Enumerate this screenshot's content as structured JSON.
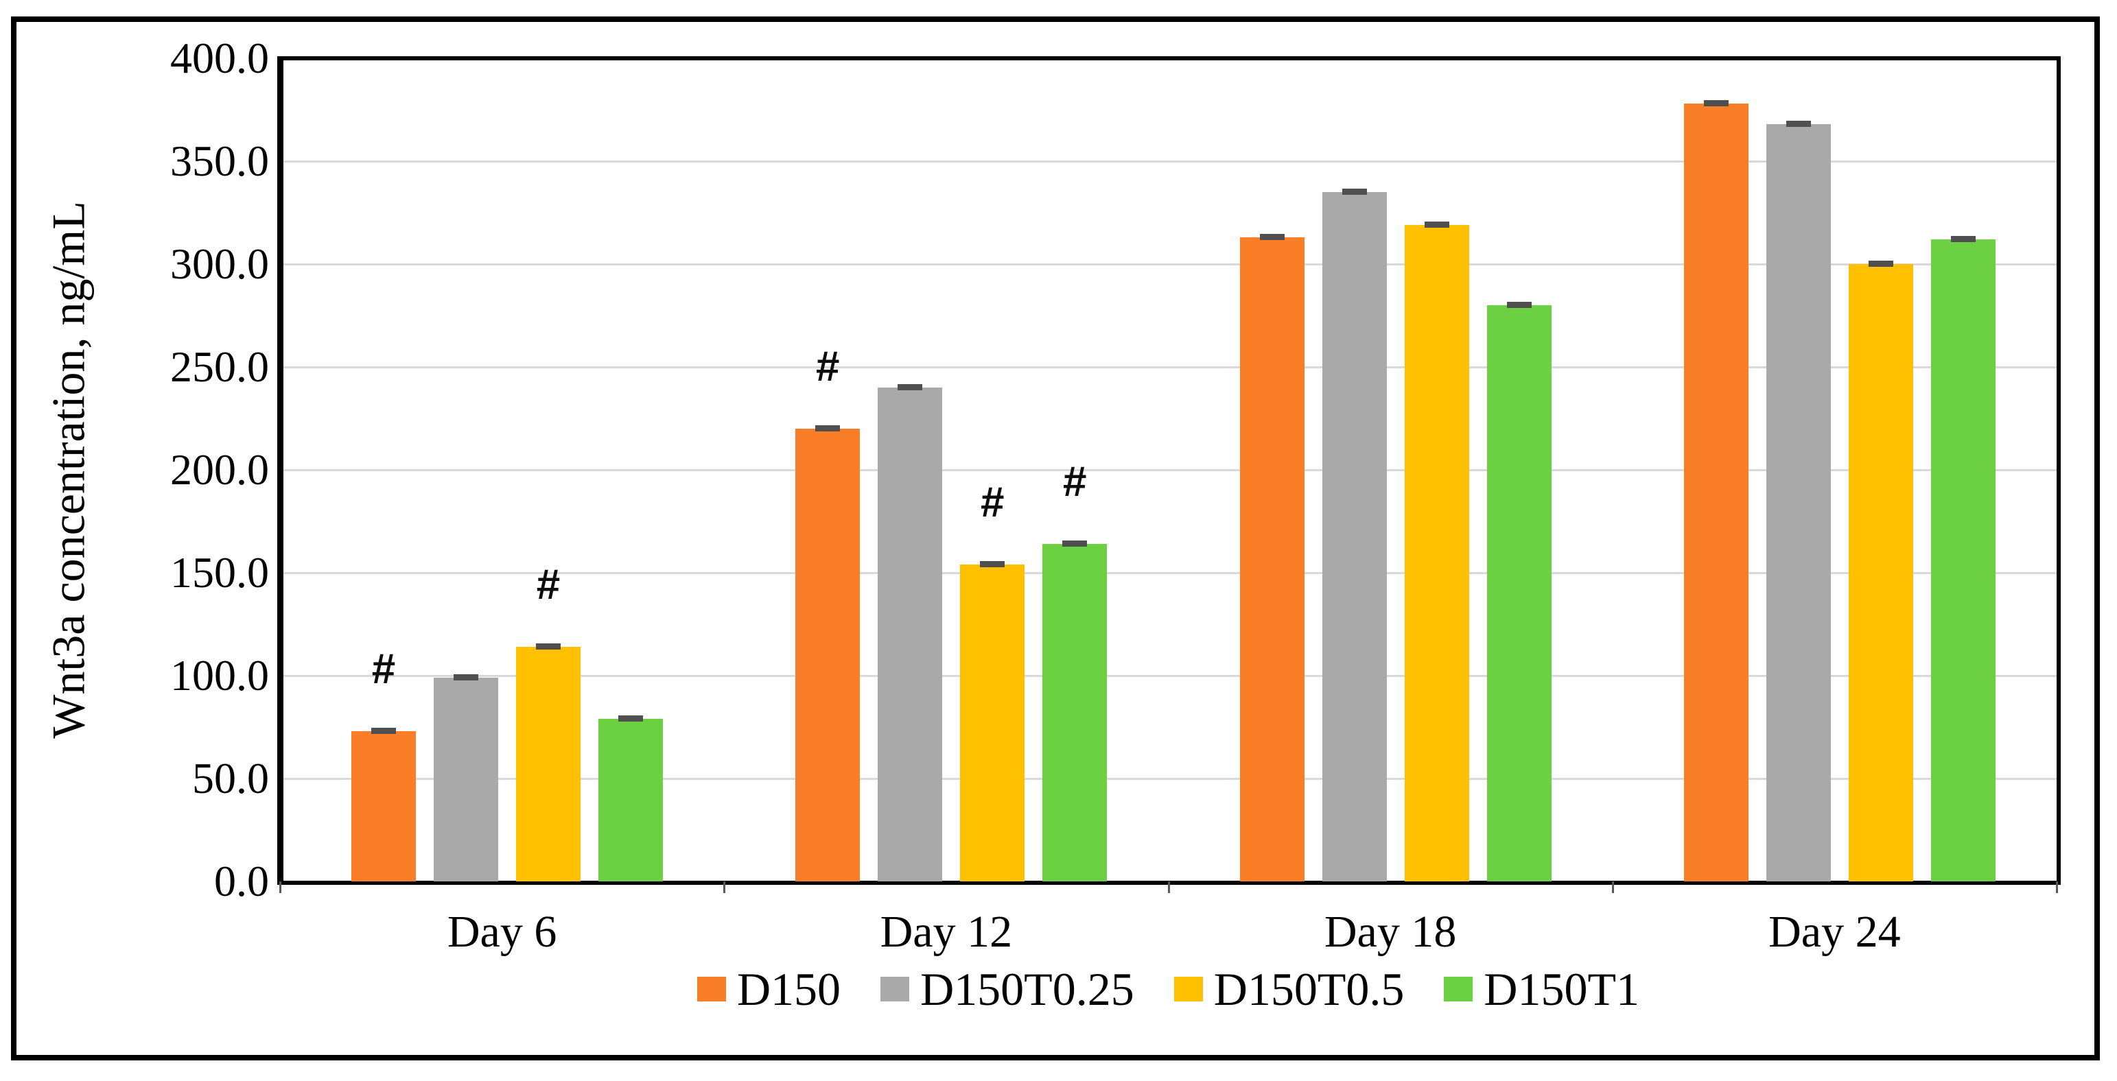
{
  "chart_data": {
    "type": "bar",
    "title": "",
    "xlabel": "",
    "ylabel": "Wnt3a concentration, ng/mL",
    "categories": [
      "Day 6",
      "Day 12",
      "Day 18",
      "Day 24"
    ],
    "series": [
      {
        "name": "D150",
        "color": "#F97E27",
        "values": [
          73,
          220,
          313,
          378
        ],
        "sig_marks": [
          true,
          true,
          false,
          false
        ]
      },
      {
        "name": "D150T0.25",
        "color": "#A9A9A9",
        "values": [
          99,
          240,
          335,
          368
        ],
        "sig_marks": [
          false,
          false,
          false,
          false
        ]
      },
      {
        "name": "D150T0.5",
        "color": "#FFC000",
        "values": [
          114,
          154,
          319,
          300
        ],
        "sig_marks": [
          true,
          true,
          false,
          false
        ]
      },
      {
        "name": "D150T1",
        "color": "#6CD043",
        "values": [
          79,
          164,
          280,
          312
        ],
        "sig_marks": [
          false,
          true,
          false,
          false
        ]
      }
    ],
    "y_axis": {
      "min": 0,
      "max": 400,
      "step": 50,
      "tick_labels": [
        "0.0",
        "50.0",
        "100.0",
        "150.0",
        "200.0",
        "250.0",
        "300.0",
        "350.0",
        "400.0"
      ]
    },
    "annotation_symbol": "#",
    "error_caps": true,
    "grid": true,
    "legend_position": "bottom"
  }
}
